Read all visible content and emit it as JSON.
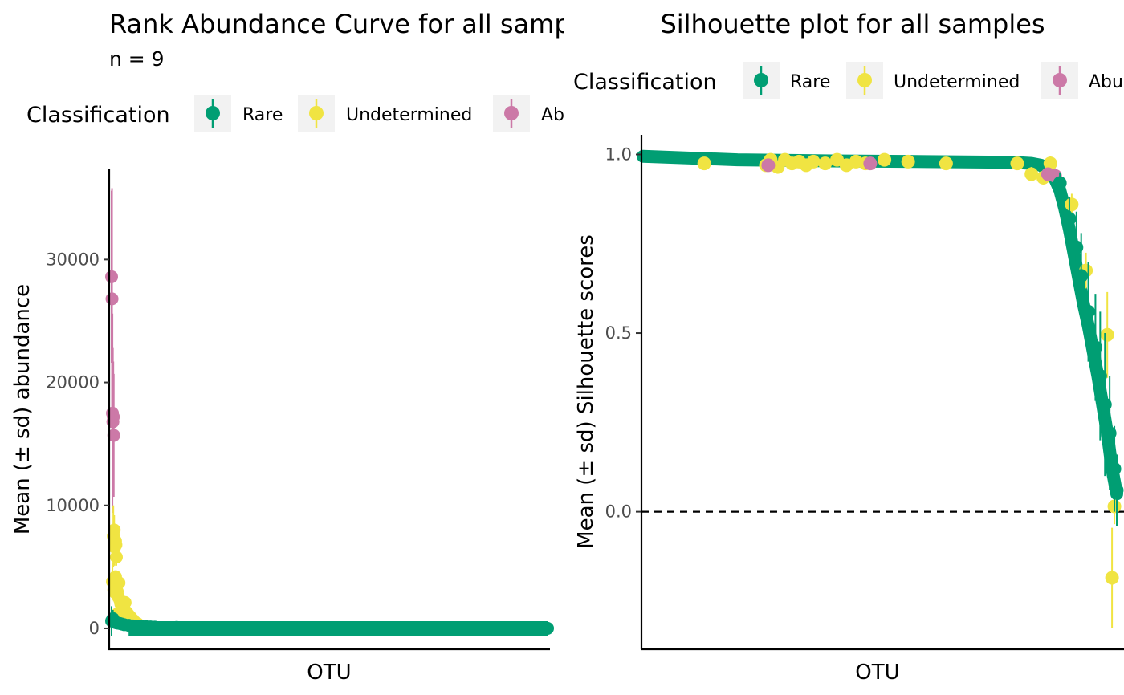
{
  "colors": {
    "rare": "#009E73",
    "undetermined": "#F0E442",
    "abundant": "#CC79A7",
    "legend_key_bg": "#F2F2F2",
    "axis": "#000000",
    "tick_text": "#4D4D4D"
  },
  "chart_data": [
    {
      "type": "scatter",
      "title": "Rank Abundance Curve for all samples",
      "subtitle": "n =  9",
      "xlabel": "OTU",
      "ylabel": "Mean (± sd) abundance",
      "ylim": [
        -1700,
        37400
      ],
      "yticks": [
        0,
        10000,
        20000,
        30000
      ],
      "ytick_labels": [
        "0",
        "10000",
        "20000",
        "30000"
      ],
      "grid": false,
      "legend": {
        "title": "Classification",
        "placement": "top",
        "entries": [
          "Rare",
          "Undetermined",
          "Abundant"
        ]
      },
      "series": [
        {
          "name": "Abundant",
          "points": [
            [
              1,
              28600,
              7000
            ],
            [
              2,
              26800,
              9000
            ],
            [
              3,
              17500,
              8100
            ],
            [
              4,
              16800,
              6000
            ],
            [
              5,
              17200,
              4500
            ],
            [
              6,
              15700,
              5000
            ]
          ]
        },
        {
          "name": "Undetermined",
          "points": [
            [
              3,
              3800,
              1500
            ],
            [
              5,
              7500,
              2500
            ],
            [
              7,
              8000,
              1200
            ],
            [
              8,
              6600,
              1500
            ],
            [
              10,
              7100,
              800
            ],
            [
              11,
              6800,
              900
            ],
            [
              12,
              5800,
              700
            ],
            [
              10,
              4200,
              500
            ],
            [
              14,
              3000,
              600
            ],
            [
              18,
              3700,
              500
            ],
            [
              16,
              2600,
              400
            ],
            [
              20,
              2300,
              400
            ],
            [
              22,
              2000,
              300
            ],
            [
              25,
              1700,
              300
            ],
            [
              28,
              1800,
              300
            ],
            [
              32,
              2100,
              250
            ],
            [
              30,
              1500,
              250
            ],
            [
              36,
              1300,
              200
            ],
            [
              40,
              1100,
              200
            ],
            [
              45,
              900,
              150
            ],
            [
              50,
              700,
              150
            ],
            [
              55,
              500,
              100
            ],
            [
              60,
              400,
              100
            ],
            [
              15,
              1200,
              300
            ],
            [
              24,
              1000,
              200
            ],
            [
              38,
              800,
              200
            ],
            [
              6,
              3100,
              900
            ],
            [
              9,
              2900,
              700
            ]
          ]
        },
        {
          "name": "Rare",
          "points": [
            [
              1,
              600,
              1200
            ],
            [
              4,
              800,
              700
            ],
            [
              8,
              500,
              500
            ],
            [
              12,
              450,
              400
            ],
            [
              16,
              420,
              300
            ],
            [
              20,
              400,
              250
            ],
            [
              25,
              350,
              200
            ],
            [
              30,
              300,
              150
            ],
            [
              40,
              250,
              100
            ],
            [
              50,
              200,
              80
            ],
            [
              60,
              180,
              60
            ],
            [
              70,
              160,
              50
            ],
            [
              80,
              140,
              40
            ],
            [
              90,
              120,
              30
            ],
            [
              100,
              100,
              25
            ],
            [
              150,
              80,
              20
            ],
            [
              200,
              60,
              15
            ],
            [
              300,
              40,
              10
            ],
            [
              400,
              30,
              5
            ],
            [
              500,
              20,
              5
            ],
            [
              600,
              15,
              3
            ],
            [
              700,
              10,
              2
            ],
            [
              800,
              8,
              2
            ],
            [
              900,
              5,
              1
            ],
            [
              1000,
              3,
              1
            ]
          ]
        }
      ],
      "x_count": 1000
    },
    {
      "type": "scatter",
      "title": "Silhouette plot for all samples",
      "xlabel": "OTU",
      "ylabel": "Mean (± sd) Silhouette scores",
      "ylim": [
        -0.385,
        1.055
      ],
      "yticks": [
        0.0,
        0.5,
        1.0
      ],
      "ytick_labels": [
        "0.0",
        "0.5",
        "1.0"
      ],
      "reference_line": {
        "y": 0,
        "style": "dashed"
      },
      "grid": false,
      "legend": {
        "title": "Classification",
        "placement": "top",
        "entries": [
          "Rare",
          "Undetermined",
          "Abundant"
        ]
      },
      "x_count": 1000,
      "rare_curve": [
        [
          1,
          0.995
        ],
        [
          100,
          0.99
        ],
        [
          200,
          0.985
        ],
        [
          400,
          0.982
        ],
        [
          600,
          0.98
        ],
        [
          780,
          0.978
        ],
        [
          820,
          0.975
        ],
        [
          840,
          0.97
        ],
        [
          850,
          0.96
        ],
        [
          860,
          0.95
        ],
        [
          870,
          0.93
        ],
        [
          880,
          0.9
        ],
        [
          890,
          0.85
        ],
        [
          900,
          0.79
        ],
        [
          910,
          0.72
        ],
        [
          920,
          0.65
        ],
        [
          930,
          0.58
        ],
        [
          940,
          0.52
        ],
        [
          950,
          0.45
        ],
        [
          960,
          0.38
        ],
        [
          970,
          0.3
        ],
        [
          980,
          0.22
        ],
        [
          990,
          0.12
        ],
        [
          1000,
          0.05
        ]
      ],
      "series": [
        {
          "name": "Undetermined",
          "points": [
            [
              130,
              0.975,
              0.01
            ],
            [
              260,
              0.97,
              0.012
            ],
            [
              270,
              0.985,
              0.01
            ],
            [
              285,
              0.965,
              0.015
            ],
            [
              300,
              0.985,
              0.01
            ],
            [
              315,
              0.975,
              0.01
            ],
            [
              330,
              0.98,
              0.01
            ],
            [
              345,
              0.97,
              0.01
            ],
            [
              360,
              0.98,
              0.01
            ],
            [
              385,
              0.975,
              0.01
            ],
            [
              410,
              0.985,
              0.01
            ],
            [
              430,
              0.97,
              0.01
            ],
            [
              450,
              0.98,
              0.01
            ],
            [
              470,
              0.975,
              0.01
            ],
            [
              510,
              0.985,
              0.01
            ],
            [
              560,
              0.98,
              0.01
            ],
            [
              640,
              0.975,
              0.01
            ],
            [
              790,
              0.975,
              0.01
            ],
            [
              820,
              0.945,
              0.02
            ],
            [
              845,
              0.935,
              0.02
            ],
            [
              860,
              0.975,
              0.02
            ],
            [
              905,
              0.86,
              0.03
            ],
            [
              935,
              0.675,
              0.05
            ],
            [
              980,
              0.495,
              0.12
            ],
            [
              995,
              0.015,
              0.05
            ],
            [
              990,
              -0.185,
              0.14
            ]
          ]
        },
        {
          "name": "Abundant",
          "points": [
            [
              265,
              0.97,
              0.01
            ],
            [
              480,
              0.975,
              0.01
            ],
            [
              855,
              0.945,
              0.015
            ],
            [
              870,
              0.94,
              0.015
            ]
          ]
        },
        {
          "name": "Rare",
          "points": [
            [
              880,
              0.92,
              0.03
            ],
            [
              900,
              0.82,
              0.06
            ],
            [
              915,
              0.74,
              0.1
            ],
            [
              925,
              0.66,
              0.12
            ],
            [
              940,
              0.56,
              0.14
            ],
            [
              955,
              0.46,
              0.15
            ],
            [
              965,
              0.38,
              0.18
            ],
            [
              975,
              0.3,
              0.2
            ],
            [
              985,
              0.22,
              0.16
            ],
            [
              995,
              0.12,
              0.12
            ],
            [
              1000,
              0.06,
              0.1
            ]
          ]
        }
      ]
    }
  ]
}
